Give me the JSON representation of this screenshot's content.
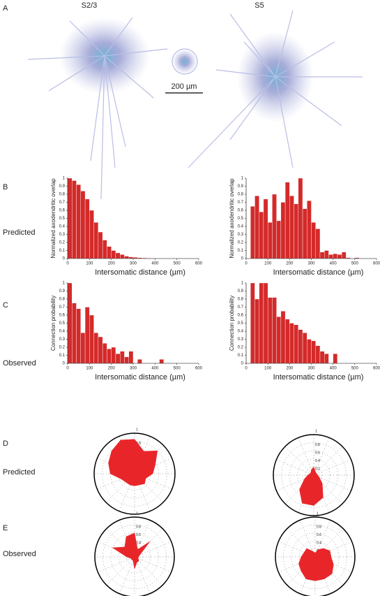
{
  "panel_labels": [
    "A",
    "B",
    "C",
    "D",
    "E"
  ],
  "column_titles": [
    "S2/3",
    "S5"
  ],
  "row_labels": [
    "Predicted",
    "Observed",
    "Predicted",
    "Observed"
  ],
  "scale_bar": "200 µm",
  "chart_data": [
    {
      "type": "histogram",
      "xlabel": "Intersomatic distance (µm)",
      "ylabel": "Normalized axodendritic overlap",
      "color": "#d42a2a",
      "bins": [
        0,
        20,
        40,
        60,
        80,
        100,
        120,
        140,
        160,
        180,
        200,
        220,
        240,
        260,
        280,
        300,
        320,
        340,
        360,
        380,
        400,
        420,
        440,
        460,
        480,
        500,
        520,
        540,
        560,
        580,
        600
      ],
      "values": [
        1.0,
        0.97,
        0.92,
        0.84,
        0.74,
        0.6,
        0.45,
        0.33,
        0.23,
        0.15,
        0.1,
        0.07,
        0.05,
        0.03,
        0.02,
        0.015,
        0.01,
        0.008,
        0.005,
        0.004,
        0.003,
        0.002,
        0,
        0,
        0,
        0,
        0,
        0,
        0,
        0
      ],
      "xlim": [
        0,
        600
      ],
      "xticks": [
        0,
        100,
        200,
        300,
        400,
        500,
        600
      ],
      "ylim": [
        0,
        1
      ],
      "yticks": [
        0,
        0.1,
        0.2,
        0.3,
        0.4,
        0.5,
        0.6,
        0.7,
        0.8,
        0.9,
        1
      ]
    },
    {
      "type": "histogram",
      "xlabel": "Intersomatic distance (µm)",
      "ylabel": "Normalized axodendritic overlap",
      "color": "#d42a2a",
      "bins": [
        0,
        20,
        40,
        60,
        80,
        100,
        120,
        140,
        160,
        180,
        200,
        220,
        240,
        260,
        280,
        300,
        320,
        340,
        360,
        380,
        400,
        420,
        440,
        460,
        480,
        500,
        520,
        540,
        560,
        580,
        600
      ],
      "values": [
        0,
        0.65,
        0.78,
        0.58,
        0.74,
        0.45,
        0.8,
        0.47,
        0.7,
        0.95,
        0.78,
        0.68,
        1.0,
        0.62,
        0.72,
        0.45,
        0.37,
        0.08,
        0.1,
        0.05,
        0.06,
        0.05,
        0.08,
        0.01,
        0,
        0.01,
        0,
        0,
        0,
        0
      ],
      "xlim": [
        0,
        600
      ],
      "xticks": [
        0,
        100,
        200,
        300,
        400,
        500,
        600
      ],
      "ylim": [
        0,
        1
      ],
      "yticks": [
        0,
        0.1,
        0.2,
        0.3,
        0.4,
        0.5,
        0.6,
        0.7,
        0.8,
        0.9,
        1
      ]
    },
    {
      "type": "histogram",
      "xlabel": "Intersomatic distance (µm)",
      "ylabel": "Connection probability",
      "color": "#d42a2a",
      "bins": [
        0,
        20,
        40,
        60,
        80,
        100,
        120,
        140,
        160,
        180,
        200,
        220,
        240,
        260,
        280,
        300,
        320,
        340,
        360,
        380,
        400,
        420,
        440,
        460,
        480,
        500,
        520,
        540,
        560,
        580,
        600
      ],
      "values": [
        1.0,
        0.75,
        0.68,
        0.38,
        0.7,
        0.6,
        0.38,
        0.33,
        0.25,
        0.18,
        0.2,
        0.12,
        0.15,
        0.08,
        0.15,
        0,
        0.05,
        0,
        0,
        0,
        0,
        0.05,
        0,
        0,
        0,
        0,
        0,
        0,
        0,
        0
      ],
      "xlim": [
        0,
        600
      ],
      "xticks": [
        0,
        100,
        200,
        300,
        400,
        500,
        600
      ],
      "ylim": [
        0,
        1
      ],
      "yticks": [
        0,
        0.1,
        0.2,
        0.3,
        0.4,
        0.5,
        0.6,
        0.7,
        0.8,
        0.9,
        1
      ]
    },
    {
      "type": "histogram",
      "xlabel": "Intersomatic distance (µm)",
      "ylabel": "Connection probability",
      "color": "#d42a2a",
      "bins": [
        0,
        20,
        40,
        60,
        80,
        100,
        120,
        140,
        160,
        180,
        200,
        220,
        240,
        260,
        280,
        300,
        320,
        340,
        360,
        380,
        400,
        420,
        440,
        460,
        480,
        500,
        520,
        540,
        560,
        580,
        600
      ],
      "values": [
        0,
        1.0,
        0.8,
        1.0,
        1.0,
        0.82,
        0.82,
        0.58,
        0.65,
        0.55,
        0.5,
        0.48,
        0.42,
        0.38,
        0.3,
        0.28,
        0.22,
        0.15,
        0.12,
        0,
        0.12,
        0,
        0,
        0,
        0,
        0,
        0,
        0,
        0,
        0
      ],
      "xlim": [
        0,
        600
      ],
      "xticks": [
        0,
        100,
        200,
        300,
        400,
        500,
        600
      ],
      "ylim": [
        0,
        1
      ],
      "yticks": [
        0,
        0.1,
        0.2,
        0.3,
        0.4,
        0.5,
        0.6,
        0.7,
        0.8,
        0.9,
        1
      ]
    },
    {
      "type": "polar",
      "color": "#e8262a",
      "rlim": [
        0,
        1
      ],
      "rticks": [
        0.2,
        0.4,
        0.6,
        0.8,
        1
      ],
      "theta": [
        0,
        22.5,
        45,
        67.5,
        90,
        112.5,
        135,
        157.5,
        180,
        202.5,
        225,
        247.5,
        270,
        292.5,
        315,
        337.5
      ],
      "r": [
        0.85,
        0.6,
        0.8,
        0.55,
        0.45,
        0.3,
        0.35,
        0.3,
        0.3,
        0.3,
        0.3,
        0.35,
        0.6,
        0.7,
        0.8,
        0.9
      ]
    },
    {
      "type": "polar",
      "color": "#e8262a",
      "rlim": [
        0,
        1
      ],
      "rticks": [
        0.2,
        0.4,
        0.6,
        0.8,
        1
      ],
      "theta": [
        0,
        22.5,
        45,
        67.5,
        90,
        112.5,
        135,
        157.5,
        180,
        202.5,
        225,
        247.5,
        270,
        292.5,
        315,
        337.5
      ],
      "r": [
        0.2,
        0.1,
        0.08,
        0.08,
        0.1,
        0.15,
        0.3,
        0.6,
        0.75,
        0.75,
        0.5,
        0.25,
        0.15,
        0.1,
        0.1,
        0.15
      ]
    },
    {
      "type": "polar",
      "color": "#e8262a",
      "rlim": [
        0,
        1
      ],
      "rticks": [
        0.2,
        0.4,
        0.6,
        0.8,
        1
      ],
      "theta": [
        0,
        22.5,
        45,
        67.5,
        90,
        112.5,
        135,
        157.5,
        180,
        202.5,
        225,
        247.5,
        270,
        292.5,
        315,
        337.5
      ],
      "r": [
        0.6,
        0.2,
        0.55,
        0.15,
        0.1,
        0.1,
        0.15,
        0.15,
        0.3,
        0.1,
        0.1,
        0.1,
        0.2,
        0.6,
        0.35,
        0.55
      ]
    },
    {
      "type": "polar",
      "color": "#e8262a",
      "rlim": [
        0,
        1
      ],
      "rticks": [
        0.2,
        0.4,
        0.6,
        0.8,
        1
      ],
      "theta": [
        0,
        22.5,
        45,
        67.5,
        90,
        112.5,
        135,
        157.5,
        180,
        202.5,
        225,
        247.5,
        270,
        292.5,
        315,
        337.5
      ],
      "r": [
        0.1,
        0.2,
        0.3,
        0.4,
        0.4,
        0.5,
        0.6,
        0.6,
        0.6,
        0.6,
        0.5,
        0.45,
        0.35,
        0.3,
        0.3,
        0.15
      ]
    }
  ]
}
